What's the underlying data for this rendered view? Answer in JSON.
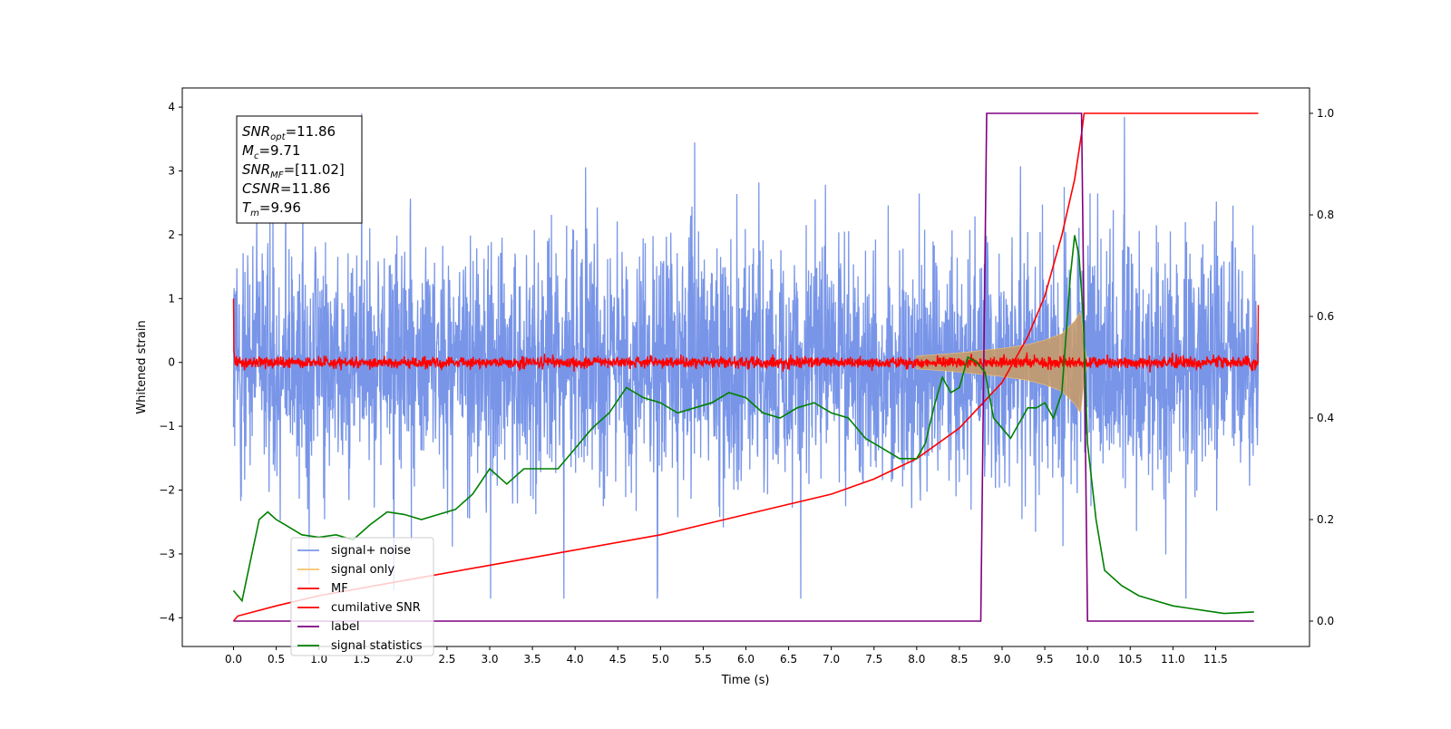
{
  "chart_data": {
    "type": "line",
    "xlabel": "Time (s)",
    "ylabel": "Whitened strain",
    "xlim": [
      -0.6,
      12.6
    ],
    "ylim": [
      -4.45,
      4.3
    ],
    "y2lim": [
      -0.05,
      1.05
    ],
    "x_ticks": [
      0.0,
      0.5,
      1.0,
      1.5,
      2.0,
      2.5,
      3.0,
      3.5,
      4.0,
      4.5,
      5.0,
      5.5,
      6.0,
      6.5,
      7.0,
      7.5,
      8.0,
      8.5,
      9.0,
      9.5,
      10.0,
      10.5,
      11.0,
      11.5
    ],
    "x_tick_labels": [
      "0.0",
      "0.5",
      "1.0",
      "1.5",
      "2.0",
      "2.5",
      "3.0",
      "3.5",
      "4.0",
      "4.5",
      "5.0",
      "5.5",
      "6.0",
      "6.5",
      "7.0",
      "7.5",
      "8.0",
      "8.5",
      "9.0",
      "9.5",
      "10.0",
      "10.5",
      "11.0",
      "11.5"
    ],
    "y_ticks": [
      4,
      3,
      2,
      1,
      0,
      -1,
      -2,
      -3,
      -4
    ],
    "y_tick_labels": [
      "4",
      "3",
      "2",
      "1",
      "0",
      "−1",
      "−2",
      "−3",
      "−4"
    ],
    "y2_ticks": [
      1.0,
      0.8,
      0.6,
      0.4,
      0.2,
      0.0
    ],
    "y2_tick_labels": [
      "1.0",
      "0.8",
      "0.6",
      "0.4",
      "0.2",
      "0.0"
    ],
    "legend_position": "lower-left",
    "grid": false,
    "annotation": {
      "lines": [
        {
          "base": "SNR",
          "sub": "opt",
          "rest": "=11.86"
        },
        {
          "base": "M",
          "sub": "c",
          "rest": "=9.71"
        },
        {
          "base": "SNR",
          "sub": "MF",
          "rest": "=[11.02]"
        },
        {
          "base": "CSNR",
          "sub": "",
          "rest": "=11.86"
        },
        {
          "base": "T",
          "sub": "m",
          "rest": "=9.96"
        }
      ]
    },
    "series": [
      {
        "name": "signal+ noise",
        "axis": "left",
        "color": "#6d8ce6",
        "style": "noise",
        "x_range": [
          0.0,
          12.0
        ],
        "amplitude": 1.5,
        "max": 3.9,
        "min": -3.7
      },
      {
        "name": "signal only",
        "axis": "left",
        "color": "#f5c56a",
        "fill": "#c49a6c",
        "style": "chirp",
        "envelope": {
          "x": [
            8.0,
            8.5,
            9.0,
            9.3,
            9.5,
            9.7,
            9.85,
            9.92,
            9.96,
            10.0
          ],
          "amp": [
            0.1,
            0.15,
            0.22,
            0.28,
            0.35,
            0.45,
            0.65,
            0.8,
            0.3,
            0.0
          ]
        }
      },
      {
        "name": "MF",
        "axis": "left",
        "color": "#ff0000",
        "style": "mf",
        "x_range": [
          0.0,
          12.0
        ],
        "amplitude": 0.08,
        "start": 1.0,
        "end": 0.9
      },
      {
        "name": "cumilative SNR",
        "axis": "right",
        "color": "#ff0000",
        "style": "line",
        "x": [
          0.0,
          0.05,
          0.5,
          1.0,
          2.0,
          3.0,
          4.0,
          5.0,
          6.0,
          7.0,
          7.5,
          8.0,
          8.5,
          9.0,
          9.3,
          9.5,
          9.7,
          9.85,
          9.93,
          9.96,
          9.97,
          12.0
        ],
        "y": [
          0.0,
          0.01,
          0.03,
          0.05,
          0.08,
          0.11,
          0.14,
          0.17,
          0.21,
          0.25,
          0.28,
          0.32,
          0.38,
          0.47,
          0.56,
          0.64,
          0.76,
          0.87,
          0.96,
          1.0,
          1.0,
          1.0
        ]
      },
      {
        "name": "label",
        "axis": "right",
        "color": "#800080",
        "style": "line",
        "x": [
          0.0,
          8.75,
          8.82,
          9.93,
          10.0,
          11.95
        ],
        "y": [
          0.0,
          0.0,
          1.0,
          1.0,
          0.0,
          0.0
        ]
      },
      {
        "name": "signal statistics",
        "axis": "right",
        "color": "#008000",
        "style": "line",
        "x": [
          0.0,
          0.1,
          0.2,
          0.3,
          0.4,
          0.5,
          0.6,
          0.7,
          0.8,
          1.0,
          1.2,
          1.4,
          1.6,
          1.8,
          2.0,
          2.2,
          2.4,
          2.6,
          2.8,
          3.0,
          3.2,
          3.4,
          3.6,
          3.8,
          4.0,
          4.2,
          4.4,
          4.6,
          4.7,
          4.8,
          5.0,
          5.2,
          5.4,
          5.6,
          5.8,
          6.0,
          6.2,
          6.4,
          6.6,
          6.8,
          7.0,
          7.2,
          7.4,
          7.6,
          7.8,
          8.0,
          8.1,
          8.2,
          8.3,
          8.4,
          8.5,
          8.6,
          8.7,
          8.8,
          8.9,
          9.0,
          9.1,
          9.2,
          9.3,
          9.4,
          9.5,
          9.6,
          9.7,
          9.8,
          9.85,
          9.9,
          9.95,
          10.0,
          10.1,
          10.2,
          10.4,
          10.6,
          10.8,
          11.0,
          11.2,
          11.4,
          11.6,
          11.95
        ],
        "y": [
          0.06,
          0.04,
          0.12,
          0.2,
          0.215,
          0.2,
          0.19,
          0.18,
          0.17,
          0.165,
          0.17,
          0.16,
          0.19,
          0.215,
          0.21,
          0.2,
          0.21,
          0.22,
          0.25,
          0.3,
          0.27,
          0.3,
          0.3,
          0.3,
          0.34,
          0.38,
          0.41,
          0.46,
          0.45,
          0.44,
          0.43,
          0.41,
          0.42,
          0.43,
          0.45,
          0.44,
          0.41,
          0.4,
          0.42,
          0.43,
          0.41,
          0.4,
          0.36,
          0.34,
          0.32,
          0.32,
          0.35,
          0.42,
          0.48,
          0.45,
          0.46,
          0.52,
          0.51,
          0.49,
          0.4,
          0.38,
          0.36,
          0.39,
          0.42,
          0.42,
          0.43,
          0.4,
          0.45,
          0.68,
          0.76,
          0.72,
          0.6,
          0.35,
          0.2,
          0.1,
          0.07,
          0.05,
          0.04,
          0.03,
          0.025,
          0.02,
          0.015,
          0.018
        ]
      }
    ]
  }
}
